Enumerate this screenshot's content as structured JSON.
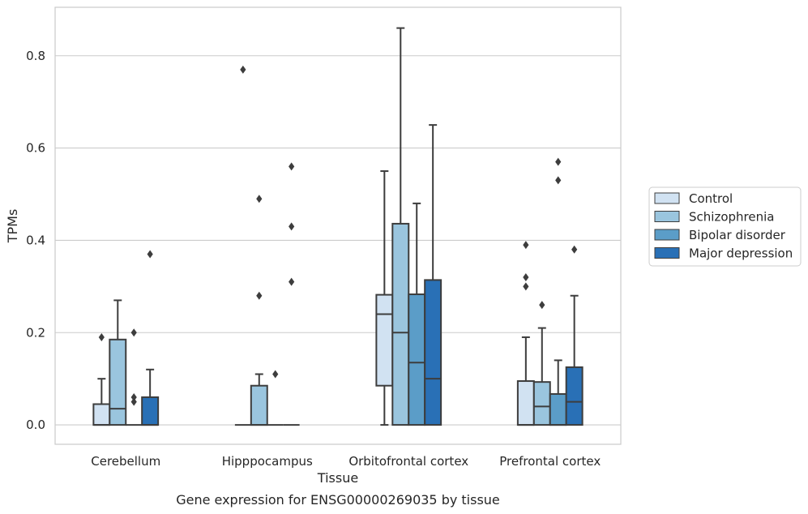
{
  "chart_data": {
    "type": "box",
    "title": "",
    "caption": "Gene expression for ENSG00000269035 by tissue",
    "xlabel": "Tissue",
    "ylabel": "TPMs",
    "ylim": [
      -0.042,
      0.905
    ],
    "yticks": [
      0.0,
      0.2,
      0.4,
      0.6,
      0.8
    ],
    "ytick_labels": [
      "0.0",
      "0.2",
      "0.4",
      "0.6",
      "0.8"
    ],
    "grid": true,
    "legend_position": "right",
    "categories": [
      "Cerebellum",
      "Hipppocampus",
      "Orbitofrontal cortex",
      "Prefrontal cortex"
    ],
    "series": [
      {
        "name": "Control",
        "color": "#d1e2f2",
        "boxes": [
          {
            "q1": 0.0,
            "median": 0.0,
            "q3": 0.045,
            "whislo": 0.0,
            "whishi": 0.1,
            "fliers": [
              0.19
            ]
          },
          {
            "q1": 0.0,
            "median": 0.0,
            "q3": 0.0,
            "whislo": 0.0,
            "whishi": 0.0,
            "fliers": [
              0.77
            ]
          },
          {
            "q1": 0.085,
            "median": 0.24,
            "q3": 0.282,
            "whislo": 0.0,
            "whishi": 0.55,
            "fliers": []
          },
          {
            "q1": 0.0,
            "median": 0.0,
            "q3": 0.095,
            "whislo": 0.0,
            "whishi": 0.19,
            "fliers": [
              0.3,
              0.32,
              0.39
            ]
          }
        ]
      },
      {
        "name": "Schizophrenia",
        "color": "#9ac5de",
        "boxes": [
          {
            "q1": 0.0,
            "median": 0.035,
            "q3": 0.185,
            "whislo": 0.0,
            "whishi": 0.27,
            "fliers": []
          },
          {
            "q1": 0.0,
            "median": 0.0,
            "q3": 0.085,
            "whislo": 0.0,
            "whishi": 0.11,
            "fliers": [
              0.28,
              0.49
            ]
          },
          {
            "q1": 0.0,
            "median": 0.2,
            "q3": 0.436,
            "whislo": 0.0,
            "whishi": 0.86,
            "fliers": []
          },
          {
            "q1": 0.0,
            "median": 0.04,
            "q3": 0.093,
            "whislo": 0.0,
            "whishi": 0.21,
            "fliers": [
              0.26
            ]
          }
        ]
      },
      {
        "name": "Bipolar disorder",
        "color": "#5b9dc8",
        "boxes": [
          {
            "q1": 0.0,
            "median": 0.0,
            "q3": 0.0,
            "whislo": 0.0,
            "whishi": 0.0,
            "fliers": [
              0.05,
              0.06,
              0.2
            ]
          },
          {
            "q1": 0.0,
            "median": 0.0,
            "q3": 0.0,
            "whislo": 0.0,
            "whishi": 0.0,
            "fliers": [
              0.11
            ]
          },
          {
            "q1": 0.0,
            "median": 0.135,
            "q3": 0.283,
            "whislo": 0.0,
            "whishi": 0.48,
            "fliers": []
          },
          {
            "q1": 0.0,
            "median": 0.0,
            "q3": 0.067,
            "whislo": 0.0,
            "whishi": 0.14,
            "fliers": [
              0.53,
              0.57
            ]
          }
        ]
      },
      {
        "name": "Major depression",
        "color": "#2970b6",
        "boxes": [
          {
            "q1": 0.0,
            "median": 0.0,
            "q3": 0.06,
            "whislo": 0.0,
            "whishi": 0.12,
            "fliers": [
              0.37
            ]
          },
          {
            "q1": 0.0,
            "median": 0.0,
            "q3": 0.0,
            "whislo": 0.0,
            "whishi": 0.0,
            "fliers": [
              0.31,
              0.43,
              0.56
            ]
          },
          {
            "q1": 0.0,
            "median": 0.1,
            "q3": 0.314,
            "whislo": 0.0,
            "whishi": 0.65,
            "fliers": []
          },
          {
            "q1": 0.0,
            "median": 0.05,
            "q3": 0.125,
            "whislo": 0.0,
            "whishi": 0.28,
            "fliers": [
              0.38
            ]
          }
        ]
      }
    ]
  }
}
